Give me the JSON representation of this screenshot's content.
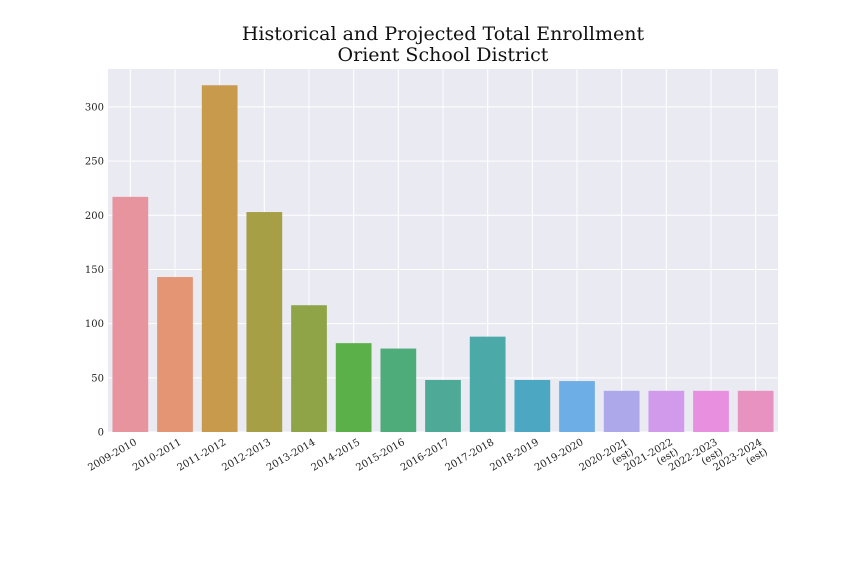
{
  "chart_data": {
    "type": "bar",
    "title": [
      "Historical and Projected Total Enrollment",
      "Orient School District"
    ],
    "xlabel": "",
    "ylabel": "",
    "categories": [
      [
        "2009-2010"
      ],
      [
        "2010-2011"
      ],
      [
        "2011-2012"
      ],
      [
        "2012-2013"
      ],
      [
        "2013-2014"
      ],
      [
        "2014-2015"
      ],
      [
        "2015-2016"
      ],
      [
        "2016-2017"
      ],
      [
        "2017-2018"
      ],
      [
        "2018-2019"
      ],
      [
        "2019-2020"
      ],
      [
        "2020-2021",
        "(est)"
      ],
      [
        "2021-2022",
        "(est)"
      ],
      [
        "2022-2023",
        "(est)"
      ],
      [
        "2023-2024",
        "(est)"
      ]
    ],
    "values": [
      217,
      143,
      320,
      203,
      117,
      82,
      77,
      48,
      88,
      48,
      47,
      38,
      38,
      38,
      38
    ],
    "colors": [
      "#e8949e",
      "#e49573",
      "#c89a4b",
      "#a79f46",
      "#8ea446",
      "#5bb04a",
      "#4eab7a",
      "#4eaa96",
      "#4ba9a8",
      "#4ca8c2",
      "#6daee7",
      "#aca8ea",
      "#d19aea",
      "#e88fdf",
      "#e892c2"
    ],
    "ylim": [
      0,
      335
    ],
    "yticks": [
      0,
      50,
      100,
      150,
      200,
      250,
      300
    ],
    "grid": true,
    "legend": "none"
  }
}
